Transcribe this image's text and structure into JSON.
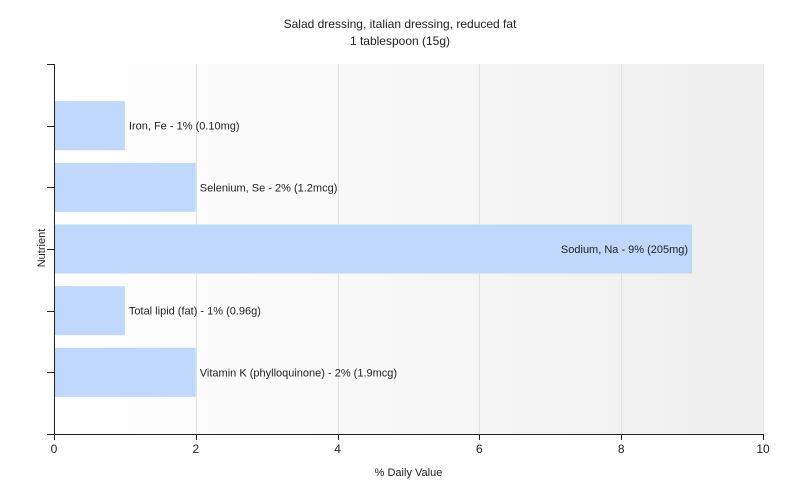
{
  "chart_data": {
    "type": "bar",
    "orientation": "horizontal",
    "title": "Salad dressing, italian dressing, reduced fat",
    "subtitle": "1 tablespoon (15g)",
    "xlabel": "% Daily Value",
    "ylabel": "Nutrient",
    "xlim": [
      0,
      10
    ],
    "xticks": [
      0,
      2,
      4,
      6,
      8,
      10
    ],
    "grid": true,
    "bar_color": "#c0d8fb",
    "categories": [
      "Iron, Fe",
      "Selenium, Se",
      "Sodium, Na",
      "Total lipid (fat)",
      "Vitamin K (phylloquinone)"
    ],
    "values": [
      1,
      2,
      9,
      1,
      2
    ],
    "data_labels": [
      "Iron, Fe - 1% (0.10mg)",
      "Selenium, Se - 2% (1.2mcg)",
      "Sodium, Na - 9% (205mg)",
      "Total lipid (fat) - 1% (0.96g)",
      "Vitamin K (phylloquinone) - 2% (1.9mcg)"
    ]
  }
}
